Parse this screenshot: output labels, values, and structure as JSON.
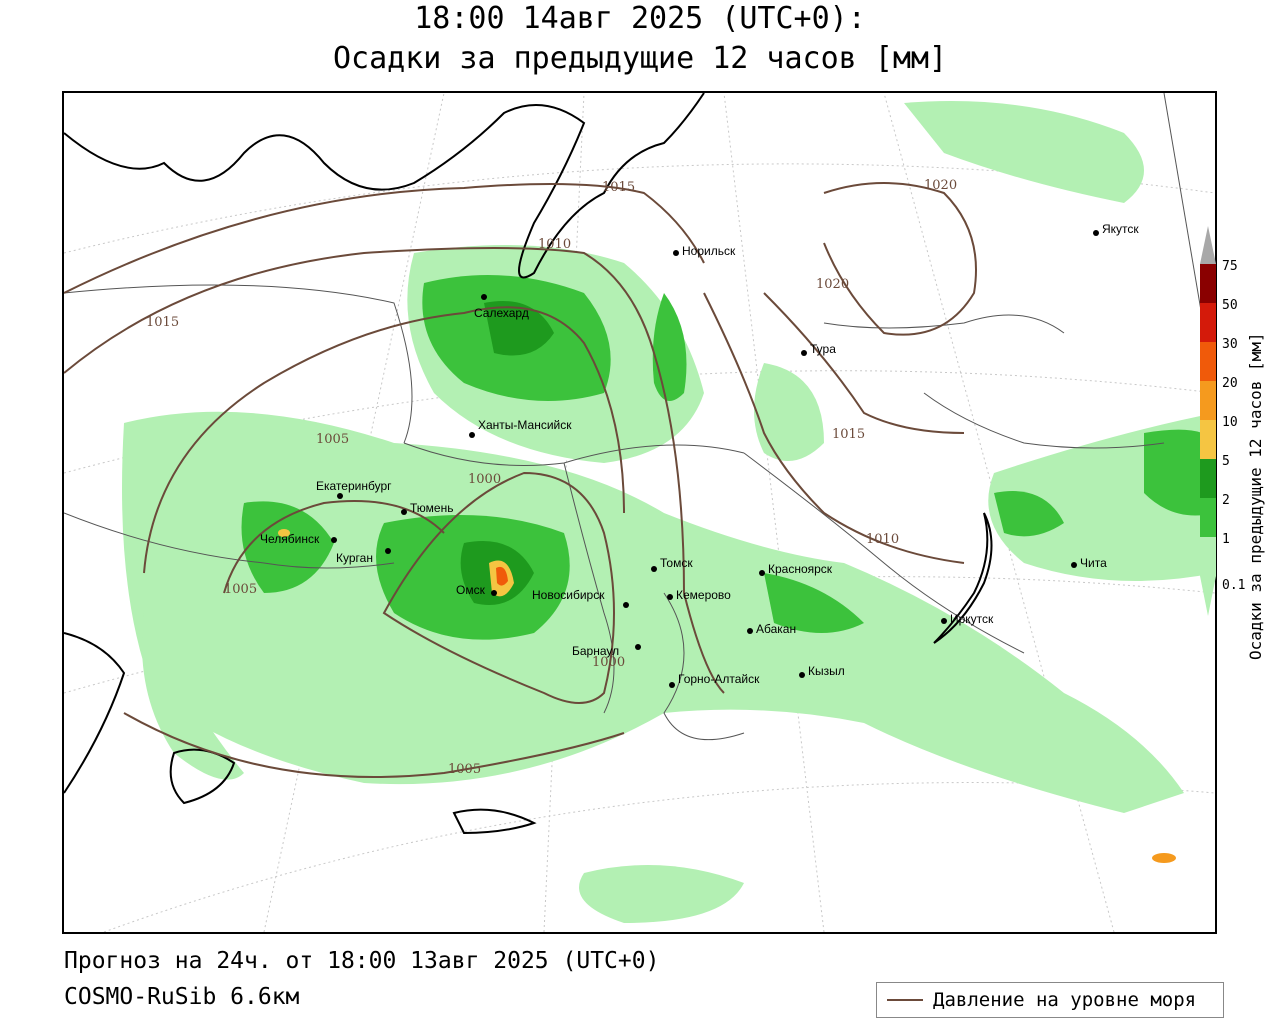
{
  "header": {
    "title_line1": "18:00 14авг 2025 (UTC+0):",
    "title_line2": "Осадки за предыдущие 12 часов [мм]"
  },
  "footer": {
    "forecast": "Прогноз на 24ч. от 18:00 13авг 2025 (UTC+0)",
    "model": "COSMO-RuSib 6.6км"
  },
  "legend": {
    "pressure_label": "Давление на уровне моря",
    "pressure_color": "#6b4a3a"
  },
  "colorbar": {
    "title": "Осадки за предыдущие 12 часов [мм]",
    "ticks": [
      "0.1",
      "1",
      "2",
      "5",
      "10",
      "20",
      "30",
      "50",
      "75"
    ],
    "colors": [
      "#b3f0b3",
      "#7ee27e",
      "#3cc23c",
      "#1e9a1e",
      "#f5c542",
      "#f59a1e",
      "#f05a0a",
      "#d41a0a",
      "#8a0000",
      "#a8a8a8"
    ]
  },
  "cities": [
    {
      "name": "Норильск"
    },
    {
      "name": "Якутск"
    },
    {
      "name": "Салехард"
    },
    {
      "name": "Тура"
    },
    {
      "name": "Ханты-Мансийск"
    },
    {
      "name": "Екатеринбург"
    },
    {
      "name": "Тюмень"
    },
    {
      "name": "Челябинск"
    },
    {
      "name": "Курган"
    },
    {
      "name": "Омск"
    },
    {
      "name": "Новосибирск"
    },
    {
      "name": "Томск"
    },
    {
      "name": "Кемерово"
    },
    {
      "name": "Красноярск"
    },
    {
      "name": "Барнаул"
    },
    {
      "name": "Абакан"
    },
    {
      "name": "Горно-Алтайск"
    },
    {
      "name": "Кызыл"
    },
    {
      "name": "Иркутск"
    },
    {
      "name": "Чита"
    }
  ],
  "isobars": [
    "1020",
    "1020",
    "1015",
    "1015",
    "1015",
    "1010",
    "1010",
    "1005",
    "1005",
    "1005",
    "1000",
    "1000"
  ]
}
